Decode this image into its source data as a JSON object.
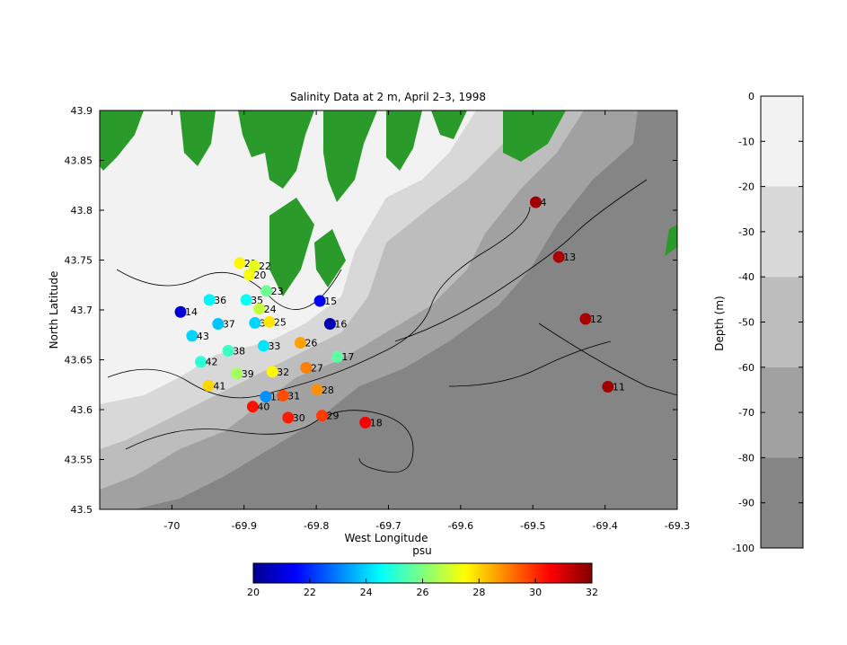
{
  "chart_data": {
    "type": "scatter",
    "title": "Salinity Data at 2 m, April 2–3, 1998",
    "xlabel": "West Longitude",
    "ylabel": "North Latitude",
    "xlim": [
      -70.1,
      -69.3
    ],
    "ylim": [
      43.5,
      43.9
    ],
    "xticks": [
      -70,
      -69.9,
      -69.8,
      -69.7,
      -69.6,
      -69.5,
      -69.4,
      -69.3
    ],
    "xtick_labels": [
      "-70",
      "-69.9",
      "-69.8",
      "-69.7",
      "-69.6",
      "-69.5",
      "-69.4",
      "-69.3"
    ],
    "yticks": [
      43.5,
      43.55,
      43.6,
      43.65,
      43.7,
      43.75,
      43.8,
      43.85,
      43.9
    ],
    "ytick_labels": [
      "43.5",
      "43.55",
      "43.6",
      "43.65",
      "43.7",
      "43.75",
      "43.8",
      "43.85",
      "43.9"
    ],
    "stations": [
      {
        "id": "4",
        "lon": -69.496,
        "lat": 43.808,
        "salinity": 31.6
      },
      {
        "id": "13",
        "lon": -69.464,
        "lat": 43.753,
        "salinity": 31.5
      },
      {
        "id": "12",
        "lon": -69.427,
        "lat": 43.691,
        "salinity": 31.5
      },
      {
        "id": "11",
        "lon": -69.396,
        "lat": 43.623,
        "salinity": 31.6
      },
      {
        "id": "18",
        "lon": -69.732,
        "lat": 43.587,
        "salinity": 30.6
      },
      {
        "id": "29",
        "lon": -69.792,
        "lat": 43.594,
        "salinity": 29.8
      },
      {
        "id": "30",
        "lon": -69.839,
        "lat": 43.592,
        "salinity": 30.2
      },
      {
        "id": "40",
        "lon": -69.888,
        "lat": 43.603,
        "salinity": 30.3
      },
      {
        "id": "19",
        "lon": -69.87,
        "lat": 43.613,
        "salinity": 23.2
      },
      {
        "id": "31",
        "lon": -69.846,
        "lat": 43.614,
        "salinity": 29.6
      },
      {
        "id": "28",
        "lon": -69.799,
        "lat": 43.62,
        "salinity": 28.8
      },
      {
        "id": "41",
        "lon": -69.949,
        "lat": 43.624,
        "salinity": 28.0
      },
      {
        "id": "39",
        "lon": -69.91,
        "lat": 43.636,
        "salinity": 26.4
      },
      {
        "id": "32",
        "lon": -69.861,
        "lat": 43.638,
        "salinity": 27.6
      },
      {
        "id": "27",
        "lon": -69.814,
        "lat": 43.642,
        "salinity": 29.0
      },
      {
        "id": "17",
        "lon": -69.771,
        "lat": 43.653,
        "salinity": 25.6
      },
      {
        "id": "42",
        "lon": -69.96,
        "lat": 43.648,
        "salinity": 25.0
      },
      {
        "id": "38",
        "lon": -69.922,
        "lat": 43.659,
        "salinity": 25.2
      },
      {
        "id": "33",
        "lon": -69.873,
        "lat": 43.664,
        "salinity": 24.2
      },
      {
        "id": "26",
        "lon": -69.822,
        "lat": 43.667,
        "salinity": 28.6
      },
      {
        "id": "43",
        "lon": -69.972,
        "lat": 43.674,
        "salinity": 24.0
      },
      {
        "id": "37",
        "lon": -69.936,
        "lat": 43.686,
        "salinity": 23.8
      },
      {
        "id": "34",
        "lon": -69.885,
        "lat": 43.687,
        "salinity": 24.0
      },
      {
        "id": "25",
        "lon": -69.865,
        "lat": 43.688,
        "salinity": 27.8
      },
      {
        "id": "16",
        "lon": -69.781,
        "lat": 43.686,
        "salinity": 20.6
      },
      {
        "id": "14",
        "lon": -69.988,
        "lat": 43.698,
        "salinity": 21.0
      },
      {
        "id": "36",
        "lon": -69.948,
        "lat": 43.71,
        "salinity": 24.4
      },
      {
        "id": "35",
        "lon": -69.897,
        "lat": 43.71,
        "salinity": 24.6
      },
      {
        "id": "24",
        "lon": -69.879,
        "lat": 43.701,
        "salinity": 26.8
      },
      {
        "id": "15",
        "lon": -69.795,
        "lat": 43.709,
        "salinity": 21.4
      },
      {
        "id": "23",
        "lon": -69.869,
        "lat": 43.719,
        "salinity": 25.8
      },
      {
        "id": "20",
        "lon": -69.893,
        "lat": 43.735,
        "salinity": 27.4
      },
      {
        "id": "21",
        "lon": -69.906,
        "lat": 43.747,
        "salinity": 27.6
      },
      {
        "id": "22",
        "lon": -69.886,
        "lat": 43.744,
        "salinity": 27.2
      }
    ],
    "colorbar": {
      "label": "psu",
      "min": 20,
      "max": 32,
      "ticks": [
        "20",
        "22",
        "24",
        "26",
        "28",
        "30",
        "32"
      ]
    },
    "depth_bar": {
      "ylabel": "Depth (m)",
      "range": [
        -100,
        0
      ],
      "ticks": [
        "0",
        "-10",
        "-20",
        "-30",
        "-40",
        "-50",
        "-60",
        "-70",
        "-80",
        "-90",
        "-100"
      ],
      "bands": [
        {
          "from": -20,
          "to": 0,
          "color": "#f2f2f2"
        },
        {
          "from": -40,
          "to": -20,
          "color": "#d8d8d8"
        },
        {
          "from": -60,
          "to": -40,
          "color": "#bdbdbd"
        },
        {
          "from": -80,
          "to": -60,
          "color": "#a1a1a1"
        },
        {
          "from": -100,
          "to": -80,
          "color": "#858585"
        }
      ]
    },
    "colors": {
      "land": "#2a9a2a",
      "deep_water": "#858585",
      "shallow_water": "#f2f2f2"
    }
  }
}
